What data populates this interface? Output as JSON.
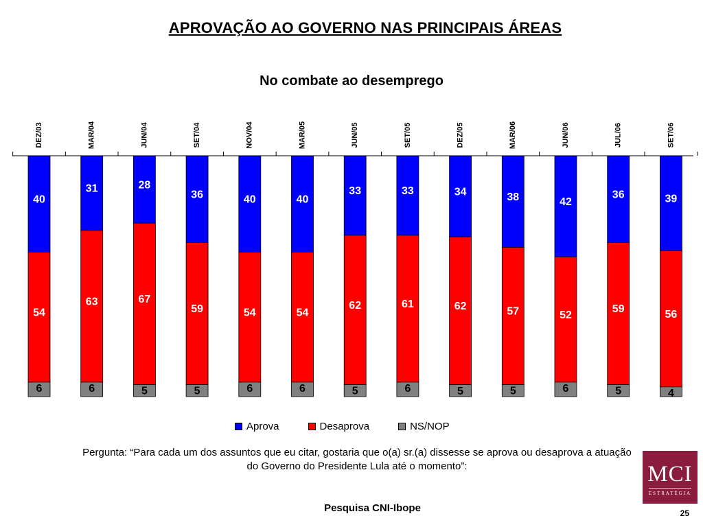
{
  "title": "APROVAÇÃO AO GOVERNO NAS PRINCIPAIS ÁREAS",
  "chart_data": {
    "type": "bar",
    "stacked": true,
    "orientation": "vertical",
    "title": "No combate ao desemprego",
    "categories": [
      "DEZ/03",
      "MAR/04",
      "JUN/04",
      "SET/04",
      "NOV/04",
      "MAR/05",
      "JUN/05",
      "SET/05",
      "DEZ/05",
      "MAR/06",
      "JUN/06",
      "JUL/06",
      "SET/06"
    ],
    "series": [
      {
        "name": "Aprova",
        "color": "#0000ff",
        "values": [
          40,
          31,
          28,
          36,
          40,
          40,
          33,
          33,
          34,
          38,
          42,
          36,
          39
        ]
      },
      {
        "name": "Desaprova",
        "color": "#ff0000",
        "values": [
          54,
          63,
          67,
          59,
          54,
          54,
          62,
          61,
          62,
          57,
          52,
          59,
          56
        ]
      },
      {
        "name": "NS/NOP",
        "color": "#808080",
        "values": [
          6,
          6,
          5,
          5,
          6,
          6,
          5,
          6,
          5,
          5,
          6,
          5,
          4
        ]
      }
    ],
    "ylim": [
      0,
      100
    ],
    "legend_position": "bottom",
    "grid": false
  },
  "question": "Pergunta: “Para cada um dos assuntos que eu citar, gostaria que o(a) sr.(a) dissesse se aprova ou desaprova a atuação do Governo do Presidente Lula até o momento”:",
  "source": "Pesquisa CNI-Ibope",
  "page_number": "25",
  "logo": {
    "main": "MCI",
    "sub": "ESTRATÉGIA"
  }
}
